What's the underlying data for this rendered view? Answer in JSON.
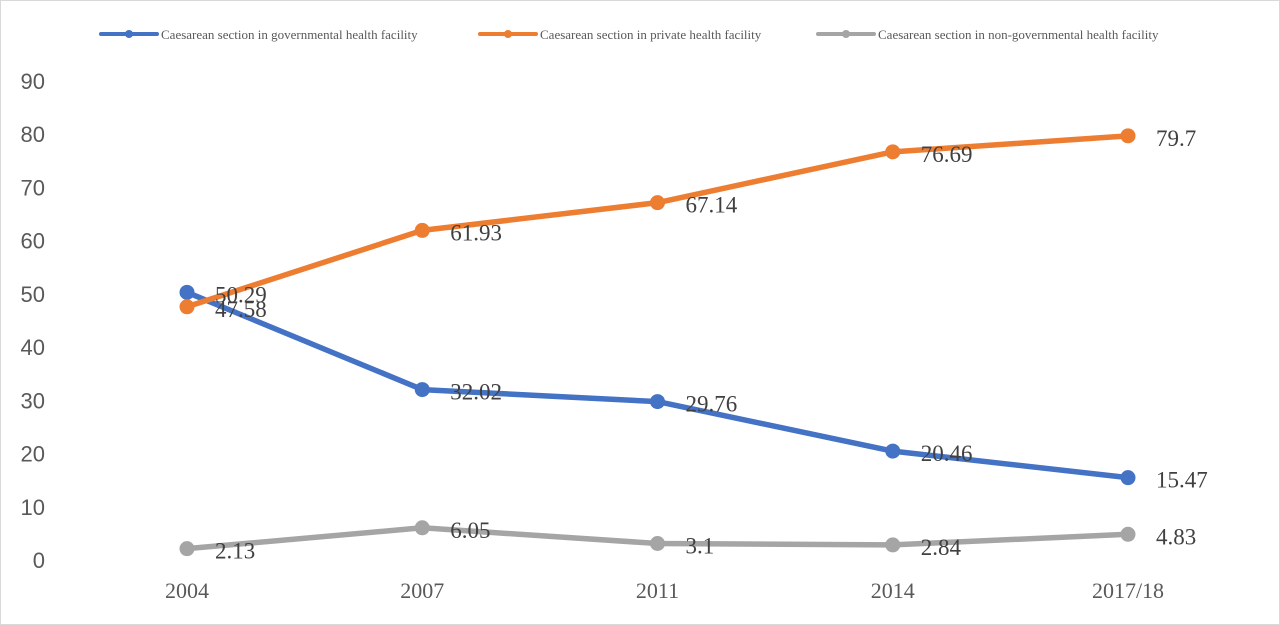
{
  "chart_data": {
    "type": "line",
    "title": "",
    "xlabel": "",
    "ylabel": "",
    "categories": [
      "2004",
      "2007",
      "2011",
      "2014",
      "2017/18"
    ],
    "ylim": [
      0,
      90
    ],
    "yticks": [
      0,
      10,
      20,
      30,
      40,
      50,
      60,
      70,
      80,
      90
    ],
    "grid": false,
    "legend_position": "top",
    "series": [
      {
        "name": "Caesarean section in governmental health facility",
        "color": "#4472C4",
        "values": [
          50.29,
          32.02,
          29.76,
          20.46,
          15.47
        ],
        "labels": [
          "50.29",
          "32.02",
          "29.76",
          "20.46",
          "15.47"
        ]
      },
      {
        "name": "Caesarean section in private health facility",
        "color": "#ED7D31",
        "values": [
          47.58,
          61.93,
          67.14,
          76.69,
          79.7
        ],
        "labels": [
          "47.58",
          "61.93",
          "67.14",
          "76.69",
          "79.7"
        ]
      },
      {
        "name": "Caesarean section in non-governmental health facility",
        "color": "#A5A5A5",
        "values": [
          2.13,
          6.05,
          3.1,
          2.84,
          4.83
        ],
        "labels": [
          "2.13",
          "6.05",
          "3.1",
          "2.84",
          "4.83"
        ]
      }
    ]
  }
}
